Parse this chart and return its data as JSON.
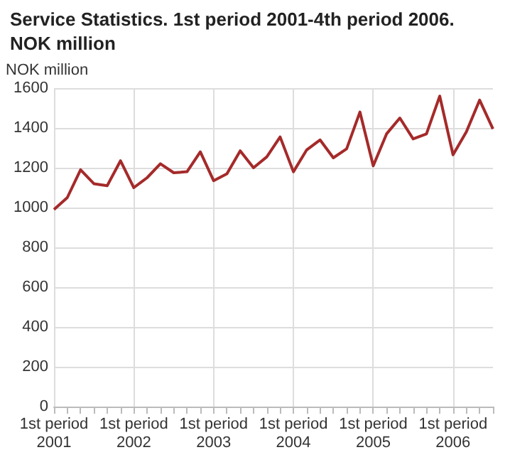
{
  "chart_data": {
    "type": "line",
    "title": "Service Statistics. 1st period 2001-4th period 2006.\nNOK million",
    "ylabel": "NOK million",
    "categories": [
      "1st period\n2001",
      null,
      null,
      null,
      null,
      null,
      "1st period\n2002",
      null,
      null,
      null,
      null,
      null,
      "1st period\n2003",
      null,
      null,
      null,
      null,
      null,
      "1st period\n2004",
      null,
      null,
      null,
      null,
      null,
      "1st period\n2005",
      null,
      null,
      null,
      null,
      null,
      "1st period\n2006",
      null,
      null,
      null
    ],
    "series": [
      {
        "color": "#a52a2a",
        "values": [
          990,
          1050,
          1190,
          1120,
          1110,
          1235,
          1100,
          1150,
          1220,
          1175,
          1180,
          1280,
          1135,
          1170,
          1285,
          1200,
          1255,
          1355,
          1180,
          1290,
          1340,
          1250,
          1295,
          1480,
          1210,
          1370,
          1450,
          1345,
          1370,
          1560,
          1265,
          1380,
          1540,
          1395
        ]
      }
    ],
    "ylim": [
      0,
      1600
    ],
    "yticks": [
      0,
      200,
      400,
      600,
      800,
      1000,
      1200,
      1400,
      1600
    ],
    "grid": true,
    "marker": "none",
    "line_style": "solid"
  }
}
